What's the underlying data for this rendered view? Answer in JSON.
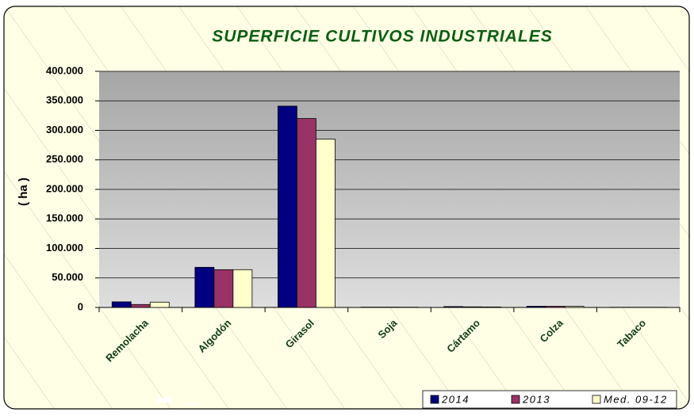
{
  "chart_data": {
    "type": "bar",
    "title": "SUPERFICIE CULTIVOS INDUSTRIALES",
    "y_label": "( ha )",
    "categories": [
      "Remolacha",
      "Algodón",
      "Girasol",
      "Soja",
      "Cártamo",
      "Colza",
      "Tabaco"
    ],
    "series": [
      {
        "name": "2014",
        "color": "#000080",
        "values": [
          9500,
          68000,
          341000,
          500,
          1500,
          2000,
          300
        ]
      },
      {
        "name": "2013",
        "color": "#993366",
        "values": [
          5000,
          64000,
          320000,
          500,
          1000,
          2000,
          300
        ]
      },
      {
        "name": "Med. 09-12",
        "color": "#ffffcc",
        "values": [
          9000,
          64000,
          285000,
          400,
          800,
          1800,
          300
        ]
      }
    ],
    "ylim": [
      0,
      400000
    ],
    "yticks": [
      0,
      {
        "value": 50000,
        "label": "50.000"
      },
      {
        "value": 100000,
        "label": "100.000"
      },
      {
        "value": 150000,
        "label": "150.000"
      },
      {
        "value": 200000,
        "label": "200.000"
      },
      {
        "value": 250000,
        "label": "250.000"
      },
      {
        "value": 300000,
        "label": "300.000"
      },
      {
        "value": 350000,
        "label": "350.000"
      },
      {
        "value": 400000,
        "label": "400.000"
      }
    ],
    "grid": true,
    "legend": "bottom-right"
  }
}
